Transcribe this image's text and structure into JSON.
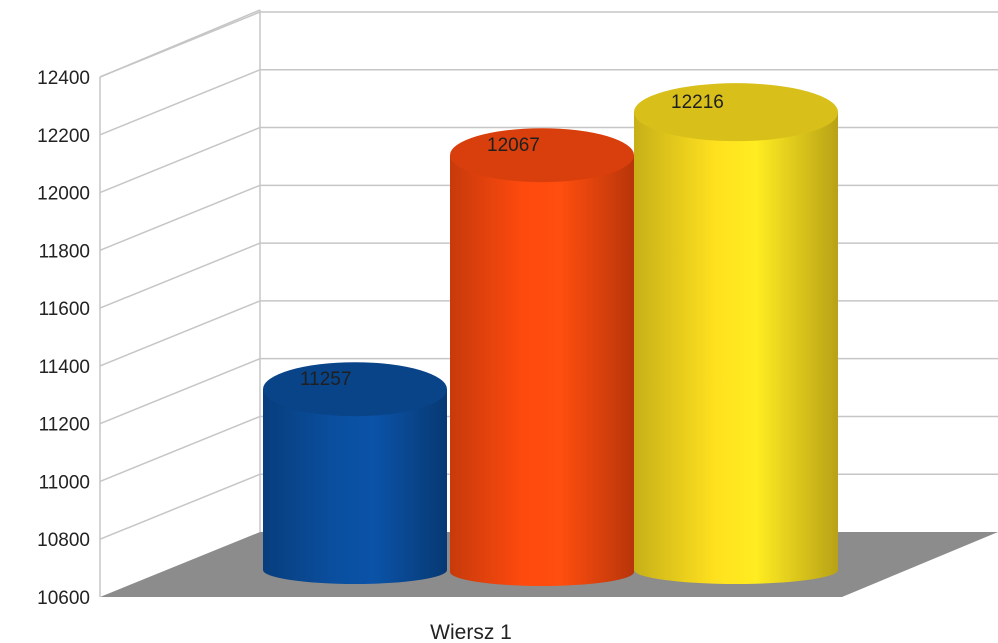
{
  "chart_data": {
    "type": "bar",
    "style": "3d-cylinder",
    "categories": [
      "Wiersz 1"
    ],
    "series": [
      {
        "values": [
          11257
        ],
        "color": "#0A4FA0"
      },
      {
        "values": [
          12067
        ],
        "color": "#FF4A0E"
      },
      {
        "values": [
          12216
        ],
        "color": "#FFE11F"
      }
    ],
    "data_labels": [
      "11257",
      "12067",
      "12216"
    ],
    "y_ticks": [
      "10600",
      "10800",
      "11000",
      "11200",
      "11400",
      "11600",
      "11800",
      "12000",
      "12200",
      "12400"
    ],
    "ylim": [
      10600,
      12400
    ],
    "grid": true,
    "floor_color": "#8C8C8C"
  }
}
